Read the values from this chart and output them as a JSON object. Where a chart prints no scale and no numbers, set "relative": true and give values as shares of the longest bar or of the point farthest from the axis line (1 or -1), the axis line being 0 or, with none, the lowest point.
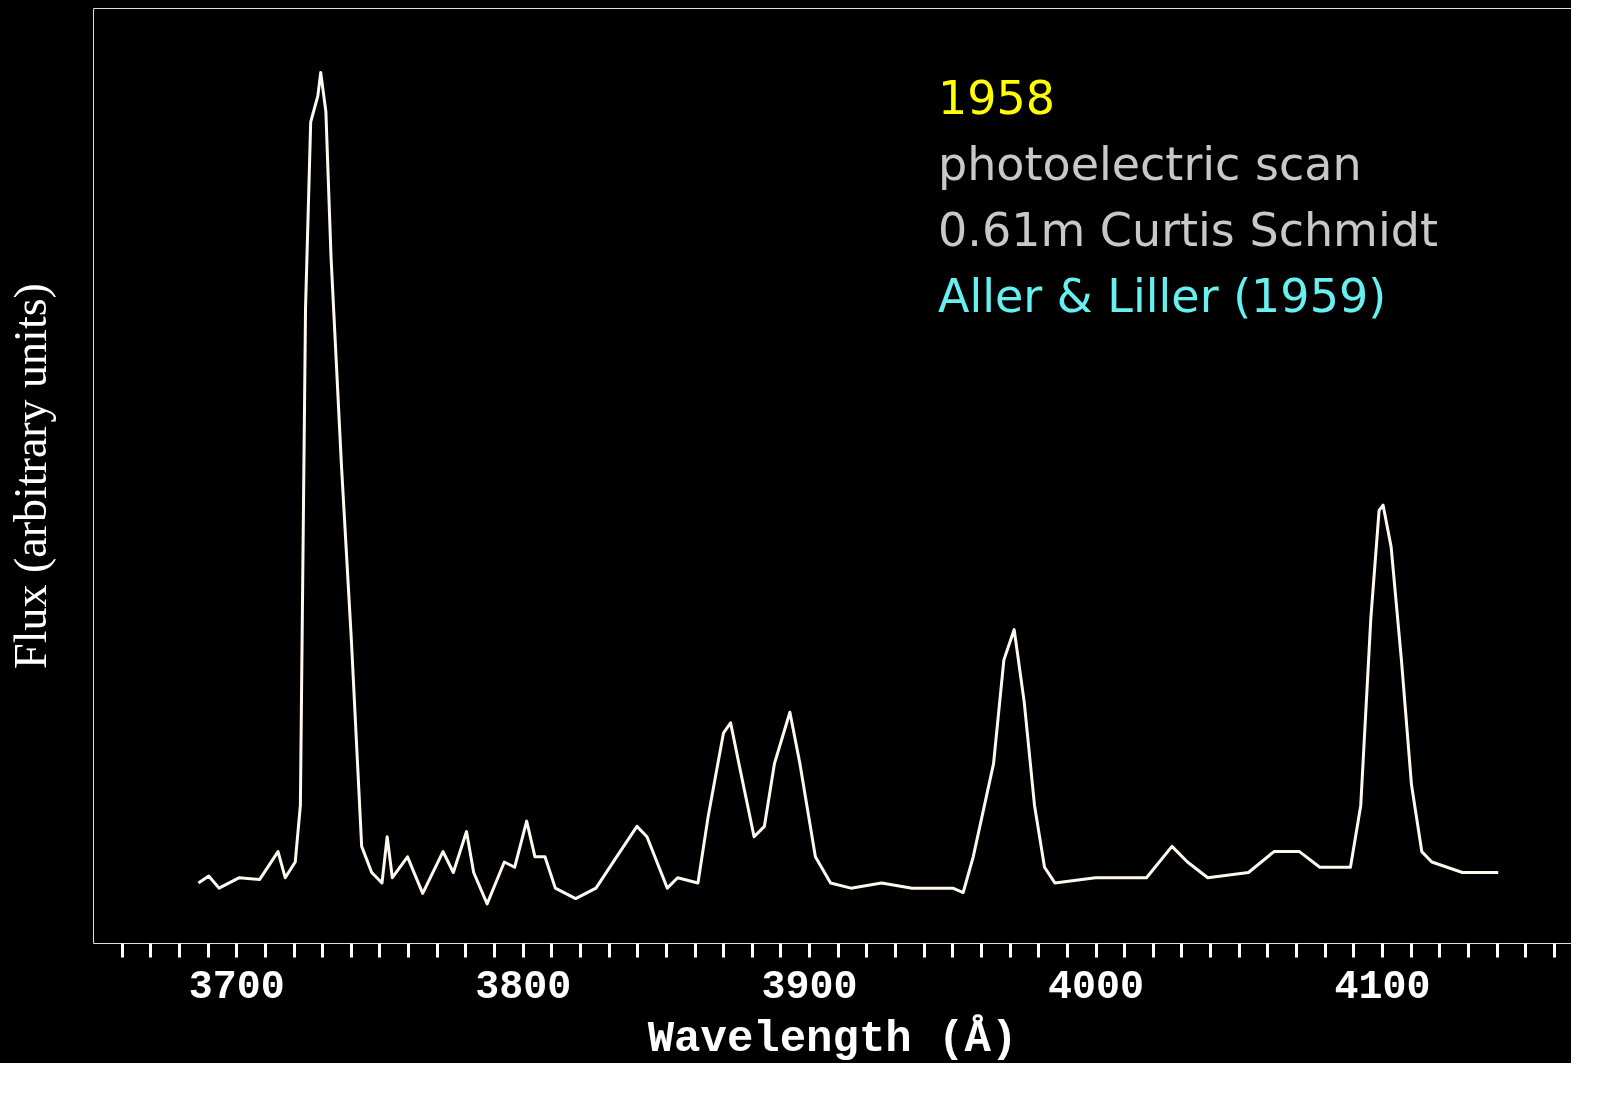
{
  "chart_data": {
    "type": "line",
    "relative": true,
    "xlabel": "Wavelength (Å)",
    "ylabel": "Flux (arbitrary units)",
    "annotations": [
      "1958",
      "photoelectric scan",
      "0.61m Curtis Schmidt",
      "Aller & Liller (1959)"
    ],
    "xlim": [
      3650,
      4166
    ],
    "xticks": [
      {
        "value": 3660,
        "label": null
      },
      {
        "value": 3670,
        "label": null
      },
      {
        "value": 3680,
        "label": null
      },
      {
        "value": 3690,
        "label": null
      },
      3700,
      {
        "value": 3710,
        "label": null
      },
      {
        "value": 3720,
        "label": null
      },
      {
        "value": 3730,
        "label": null
      },
      {
        "value": 3740,
        "label": null
      },
      {
        "value": 3750,
        "label": null
      },
      {
        "value": 3760,
        "label": null
      },
      {
        "value": 3770,
        "label": null
      },
      {
        "value": 3780,
        "label": null
      },
      {
        "value": 3790,
        "label": null
      },
      3800,
      {
        "value": 3810,
        "label": null
      },
      {
        "value": 3820,
        "label": null
      },
      {
        "value": 3830,
        "label": null
      },
      {
        "value": 3840,
        "label": null
      },
      {
        "value": 3850,
        "label": null
      },
      {
        "value": 3860,
        "label": null
      },
      {
        "value": 3870,
        "label": null
      },
      {
        "value": 3880,
        "label": null
      },
      {
        "value": 3890,
        "label": null
      },
      3900,
      {
        "value": 3910,
        "label": null
      },
      {
        "value": 3920,
        "label": null
      },
      {
        "value": 3930,
        "label": null
      },
      {
        "value": 3940,
        "label": null
      },
      {
        "value": 3950,
        "label": null
      },
      {
        "value": 3960,
        "label": null
      },
      {
        "value": 3970,
        "label": null
      },
      {
        "value": 3980,
        "label": null
      },
      {
        "value": 3990,
        "label": null
      },
      4000,
      {
        "value": 4010,
        "label": null
      },
      {
        "value": 4020,
        "label": null
      },
      {
        "value": 4030,
        "label": null
      },
      {
        "value": 4040,
        "label": null
      },
      {
        "value": 4050,
        "label": null
      },
      {
        "value": 4060,
        "label": null
      },
      {
        "value": 4070,
        "label": null
      },
      {
        "value": 4080,
        "label": null
      },
      {
        "value": 4090,
        "label": null
      },
      4100,
      {
        "value": 4110,
        "label": null
      },
      {
        "value": 4120,
        "label": null
      },
      {
        "value": 4130,
        "label": null
      },
      {
        "value": 4140,
        "label": null
      },
      {
        "value": 4150,
        "label": null
      },
      {
        "value": 4160,
        "label": null
      }
    ],
    "grid": false,
    "marker": "none",
    "line_style": "solid",
    "x": [
      3686.8,
      3690.4,
      3694.0,
      3701.1,
      3708.2,
      3714.6,
      3717.1,
      3720.6,
      3722.4,
      3724.2,
      3726.0,
      3728.5,
      3729.5,
      3731.3,
      3733.1,
      3736.7,
      3740.2,
      3743.8,
      3747.3,
      3750.9,
      3752.7,
      3754.5,
      3759.8,
      3765.1,
      3772.2,
      3775.8,
      3780.4,
      3782.9,
      3787.6,
      3793.6,
      3797.2,
      3801.4,
      3804.3,
      3807.8,
      3811.4,
      3818.5,
      3825.6,
      3832.8,
      3839.9,
      3843.4,
      3850.5,
      3854.1,
      3861.2,
      3864.8,
      3870.1,
      3872.6,
      3875.5,
      3880.8,
      3884.4,
      3887.9,
      3893.3,
      3896.8,
      3902.2,
      3907.5,
      3914.6,
      3925.3,
      3936.0,
      3950.2,
      3953.8,
      3957.3,
      3964.4,
      3968.0,
      3971.6,
      3975.1,
      3978.7,
      3982.2,
      3985.8,
      4000.0,
      4017.8,
      4026.7,
      4032.1,
      4039.2,
      4053.4,
      4062.3,
      4071.2,
      4078.3,
      4089.0,
      4092.6,
      4096.1,
      4099.0,
      4100.4,
      4103.2,
      4106.8,
      4110.3,
      4113.9,
      4117.4,
      4128.1,
      4140.6
    ],
    "series": [
      {
        "color": "#fff8ee",
        "values": [
          0.069,
          0.077,
          0.063,
          0.075,
          0.073,
          0.105,
          0.075,
          0.093,
          0.158,
          0.729,
          0.943,
          0.973,
          1.0,
          0.955,
          0.788,
          0.551,
          0.348,
          0.111,
          0.081,
          0.069,
          0.122,
          0.075,
          0.099,
          0.057,
          0.105,
          0.081,
          0.128,
          0.081,
          0.045,
          0.093,
          0.087,
          0.14,
          0.099,
          0.099,
          0.063,
          0.051,
          0.063,
          0.099,
          0.134,
          0.122,
          0.063,
          0.075,
          0.069,
          0.146,
          0.241,
          0.253,
          0.206,
          0.122,
          0.134,
          0.206,
          0.265,
          0.206,
          0.099,
          0.069,
          0.063,
          0.069,
          0.063,
          0.063,
          0.058,
          0.099,
          0.206,
          0.325,
          0.36,
          0.277,
          0.158,
          0.087,
          0.069,
          0.075,
          0.075,
          0.111,
          0.093,
          0.075,
          0.081,
          0.105,
          0.105,
          0.087,
          0.087,
          0.158,
          0.372,
          0.497,
          0.503,
          0.455,
          0.325,
          0.182,
          0.105,
          0.093,
          0.081,
          0.081
        ]
      }
    ]
  }
}
